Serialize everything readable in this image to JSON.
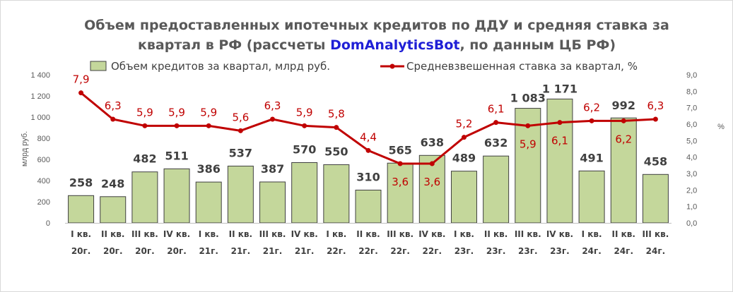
{
  "title_lines": [
    {
      "before": "Объем предоставленных ипотечных кредитов по ДДУ и средняя ставка за",
      "accent": "",
      "after": ""
    },
    {
      "before": "квартал в РФ (рассчеты ",
      "accent": "DomAnalyticsBot",
      "after": ", по данным ЦБ РФ)"
    }
  ],
  "colors": {
    "bar_fill": "#c4d79b",
    "bar_stroke": "#404040",
    "line": "#c00000",
    "title_accent": "#1f1fd6"
  },
  "chart_data": {
    "type": "bar",
    "categories": [
      [
        "I кв.",
        "20г."
      ],
      [
        "II кв.",
        "20г."
      ],
      [
        "III кв.",
        "20г."
      ],
      [
        "IV кв.",
        "20г."
      ],
      [
        "I кв.",
        "21г."
      ],
      [
        "II кв.",
        "21г."
      ],
      [
        "III кв.",
        "21г."
      ],
      [
        "IV кв.",
        "21г."
      ],
      [
        "I кв.",
        "22г."
      ],
      [
        "II кв.",
        "22г."
      ],
      [
        "III кв.",
        "22г."
      ],
      [
        "IV кв.",
        "22г."
      ],
      [
        "I кв.",
        "23г."
      ],
      [
        "II кв.",
        "23г."
      ],
      [
        "III кв.",
        "23г."
      ],
      [
        "IV кв.",
        "23г."
      ],
      [
        "I кв.",
        "24г."
      ],
      [
        "II кв.",
        "24г."
      ],
      [
        "III кв.",
        "24г."
      ]
    ],
    "series": [
      {
        "name": "Объем кредитов за квартал, млрд руб.",
        "type": "bar",
        "axis": "left",
        "values": [
          258,
          248,
          482,
          511,
          386,
          537,
          387,
          570,
          550,
          310,
          565,
          638,
          489,
          632,
          1083,
          1171,
          491,
          992,
          458
        ],
        "labels": [
          "258",
          "248",
          "482",
          "511",
          "386",
          "537",
          "387",
          "570",
          "550",
          "310",
          "565",
          "638",
          "489",
          "632",
          "1 083",
          "1 171",
          "491",
          "992",
          "458"
        ]
      },
      {
        "name": "Средневзвешенная  ставка за квартал, %",
        "type": "line",
        "axis": "right",
        "values": [
          7.9,
          6.3,
          5.9,
          5.9,
          5.9,
          5.6,
          6.3,
          5.9,
          5.8,
          4.4,
          3.6,
          3.6,
          5.2,
          6.1,
          5.9,
          6.1,
          6.2,
          6.2,
          6.3
        ],
        "labels": [
          "7,9",
          "6,3",
          "5,9",
          "5,9",
          "5,9",
          "5,6",
          "6,3",
          "5,9",
          "5,8",
          "4,4",
          "3,6",
          "3,6",
          "5,2",
          "6,1",
          "5,9",
          "6,1",
          "6,2",
          "6,2",
          "6,3"
        ]
      }
    ],
    "ylabel": "млрд руб.",
    "y2label": "%",
    "ylim": [
      0,
      1400
    ],
    "y2lim": [
      0,
      9
    ],
    "yticks": [
      "0",
      "200",
      "400",
      "600",
      "800",
      "1 000",
      "1 200",
      "1 400"
    ],
    "y2ticks": [
      "0,0",
      "1,0",
      "2,0",
      "3,0",
      "4,0",
      "5,0",
      "6,0",
      "7,0",
      "8,0",
      "9,0"
    ],
    "grid": false,
    "legend_position": "top"
  }
}
